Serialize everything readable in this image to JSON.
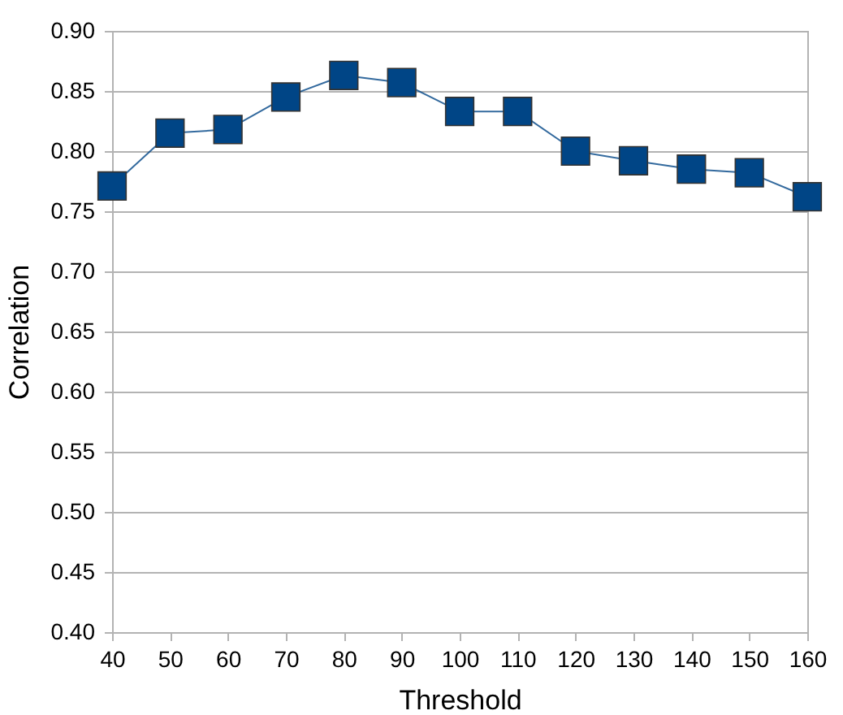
{
  "chart_data": {
    "type": "line",
    "xlabel": "Threshold",
    "ylabel": "Correlation",
    "x": [
      40,
      50,
      60,
      70,
      80,
      90,
      100,
      110,
      120,
      130,
      140,
      150,
      160
    ],
    "series": [
      {
        "color": "#004586",
        "values": [
          0.771,
          0.815,
          0.818,
          0.845,
          0.863,
          0.857,
          0.833,
          0.833,
          0.8,
          0.792,
          0.785,
          0.782,
          0.762
        ]
      }
    ],
    "xlim": [
      40,
      160
    ],
    "xticks": [
      40,
      50,
      60,
      70,
      80,
      90,
      100,
      110,
      120,
      130,
      140,
      150,
      160
    ],
    "ylim": [
      0.4,
      0.9
    ],
    "yticks": [
      {
        "value": 0.4,
        "label": "0.40"
      },
      0.45,
      {
        "value": 0.5,
        "label": "0.50"
      },
      0.55,
      {
        "value": 0.6,
        "label": "0.60"
      },
      0.65,
      {
        "value": 0.7,
        "label": "0.70"
      },
      0.75,
      {
        "value": 0.8,
        "label": "0.80"
      },
      0.85,
      {
        "value": 0.9,
        "label": "0.90"
      }
    ],
    "grid": "y",
    "marker": "square",
    "line_style": "solid",
    "legend": false
  }
}
